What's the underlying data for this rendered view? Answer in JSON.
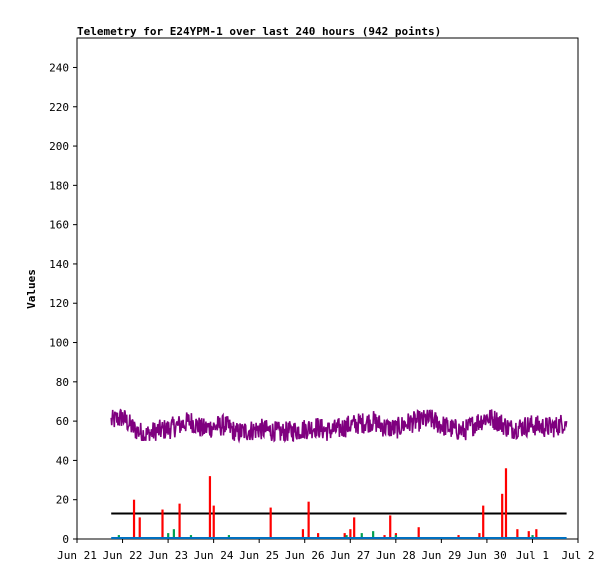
{
  "chart_data": {
    "type": "line",
    "title": "Telemetry for E24YPM-1 over last 240 hours (942 points)",
    "xlabel": "",
    "ylabel": "Values",
    "ylim": [
      0,
      255
    ],
    "xlim": [
      "Jun 21",
      "Jul 2"
    ],
    "yticks": [
      0,
      20,
      40,
      60,
      80,
      100,
      120,
      140,
      160,
      180,
      200,
      220,
      240
    ],
    "xticks": [
      "Jun 21",
      "Jun 22",
      "Jun 23",
      "Jun 24",
      "Jun 25",
      "Jun 26",
      "Jun 27",
      "Jun 28",
      "Jun 29",
      "Jun 30",
      "Jul 1",
      "Jul 2"
    ],
    "grid": false,
    "legend": "none",
    "series": [
      {
        "color": "#7f007f",
        "style": "line",
        "x": [
          "Jun 21 18:00",
          "Jun 22 00:00",
          "Jun 22 06:00",
          "Jun 22 12:00",
          "Jun 22 18:00",
          "Jun 23 00:00",
          "Jun 23 06:00",
          "Jun 23 12:00",
          "Jun 23 18:00",
          "Jun 24 00:00",
          "Jun 24 06:00",
          "Jun 24 12:00",
          "Jun 24 18:00",
          "Jun 25 00:00",
          "Jun 25 06:00",
          "Jun 25 12:00",
          "Jun 25 18:00",
          "Jun 26 00:00",
          "Jun 26 06:00",
          "Jun 26 12:00",
          "Jun 26 18:00",
          "Jun 27 00:00",
          "Jun 27 06:00",
          "Jun 27 12:00",
          "Jun 27 18:00",
          "Jun 28 00:00",
          "Jun 28 06:00",
          "Jun 28 12:00",
          "Jun 28 18:00",
          "Jun 29 00:00",
          "Jun 29 06:00",
          "Jun 29 12:00",
          "Jun 29 18:00",
          "Jun 30 00:00",
          "Jun 30 06:00",
          "Jun 30 12:00",
          "Jun 30 18:00",
          "Jul 1 00:00",
          "Jul 1 06:00",
          "Jul 1 12:00",
          "Jul 1 18:00"
        ],
        "values": [
          60,
          62,
          56,
          53,
          55,
          56,
          58,
          60,
          56,
          57,
          58,
          54,
          55,
          56,
          55,
          54,
          55,
          56,
          57,
          55,
          56,
          58,
          59,
          60,
          57,
          56,
          59,
          60,
          61,
          58,
          56,
          55,
          59,
          62,
          60,
          56,
          57,
          58,
          57,
          57,
          60
        ],
        "min": 50,
        "max": 68
      },
      {
        "color": "#000000",
        "style": "line",
        "x": [
          "Jun 21 18:00",
          "Jul 1 18:00"
        ],
        "values": [
          13,
          13
        ]
      },
      {
        "color": "#ff0000",
        "style": "bar",
        "x": [
          "Jun 22 06:00",
          "Jun 22 09:00",
          "Jun 22 21:00",
          "Jun 23 06:00",
          "Jun 23 22:00",
          "Jun 24 00:00",
          "Jun 25 06:00",
          "Jun 25 23:00",
          "Jun 26 02:00",
          "Jun 26 07:00",
          "Jun 26 21:00",
          "Jun 27 00:00",
          "Jun 27 02:00",
          "Jun 27 18:00",
          "Jun 27 21:00",
          "Jun 28 00:00",
          "Jun 28 12:00",
          "Jun 29 09:00",
          "Jun 29 20:00",
          "Jun 29 22:00",
          "Jun 30 08:00",
          "Jun 30 10:00",
          "Jun 30 16:00",
          "Jun 30 22:00",
          "Jul 1 02:00"
        ],
        "values": [
          20,
          11,
          15,
          18,
          32,
          17,
          16,
          5,
          19,
          3,
          3,
          5,
          11,
          2,
          12,
          3,
          6,
          2,
          3,
          17,
          23,
          36,
          5,
          4,
          5
        ]
      },
      {
        "color": "#00a050",
        "style": "bar",
        "x": [
          "Jun 21 22:00",
          "Jun 22 12:00",
          "Jun 23 00:00",
          "Jun 23 03:00",
          "Jun 23 12:00",
          "Jun 24 08:00",
          "Jun 24 18:00",
          "Jun 25 12:00",
          "Jun 26 12:00",
          "Jun 26 22:00",
          "Jun 27 06:00",
          "Jun 27 12:00",
          "Jun 28 00:00",
          "Jun 28 14:00",
          "Jun 29 06:00",
          "Jun 29 18:00",
          "Jun 30 14:00",
          "Jul 1 00:00",
          "Jul 1 12:00"
        ],
        "values": [
          2,
          1,
          3,
          5,
          2,
          2,
          1,
          1,
          1,
          2,
          3,
          4,
          2,
          1,
          1,
          1,
          1,
          2,
          1
        ]
      },
      {
        "color": "#0070c0",
        "style": "line",
        "x": [
          "Jun 21 18:00",
          "Jul 1 18:00"
        ],
        "values": [
          0.5,
          0.5
        ]
      }
    ]
  }
}
